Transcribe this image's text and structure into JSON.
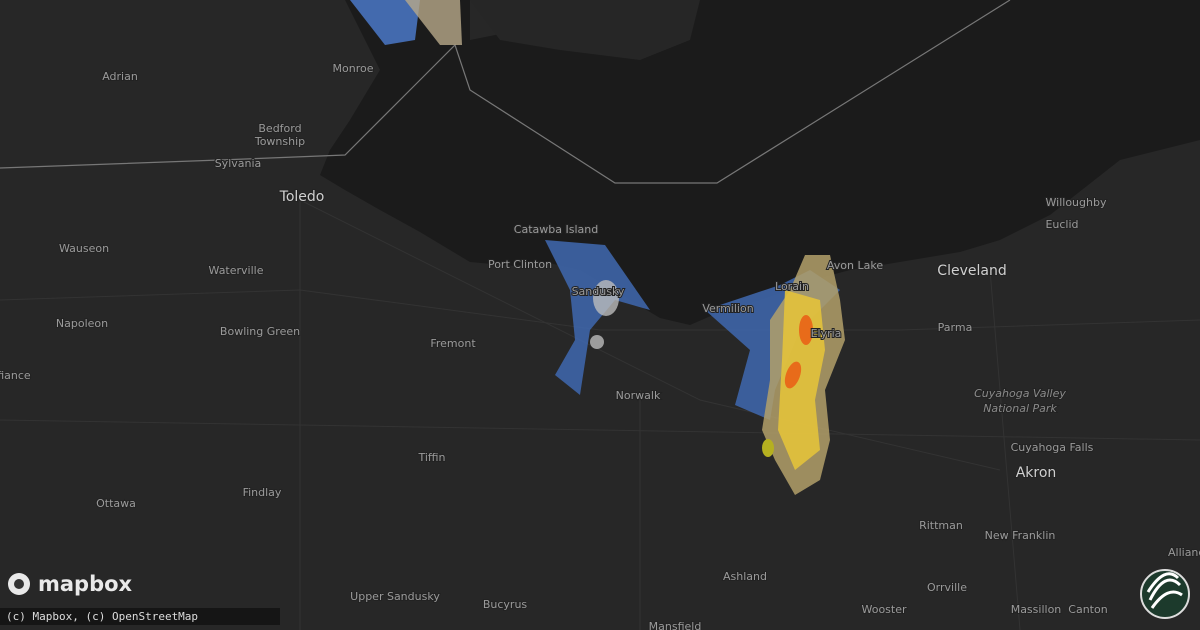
{
  "map": {
    "places": [
      "Adrian",
      "Monroe",
      "Bedford",
      "Township",
      "Sylvania",
      "Toledo",
      "Catawba Island",
      "Port Clinton",
      "Sandusky",
      "Vermilion",
      "Lorain",
      "Avon Lake",
      "Elyria",
      "Cleveland",
      "Willoughby",
      "Euclid",
      "Parma",
      "Cuyahoga Valley",
      "National Park",
      "Cuyahoga Falls",
      "Akron",
      "Wauseon",
      "Waterville",
      "Napoleon",
      "Bowling Green",
      "Fremont",
      "Norwalk",
      "Tiffin",
      "Findlay",
      "Ottawa",
      "Rittman",
      "New Franklin",
      "Orrville",
      "Massillon",
      "Canton",
      "Wooster",
      "Ashland",
      "Upper Sandusky",
      "Bucyrus",
      "Mansfield",
      "Alliance",
      "Defiance"
    ],
    "logo": "mapbox",
    "attribution": "(c) Mapbox, (c) OpenStreetMap"
  }
}
